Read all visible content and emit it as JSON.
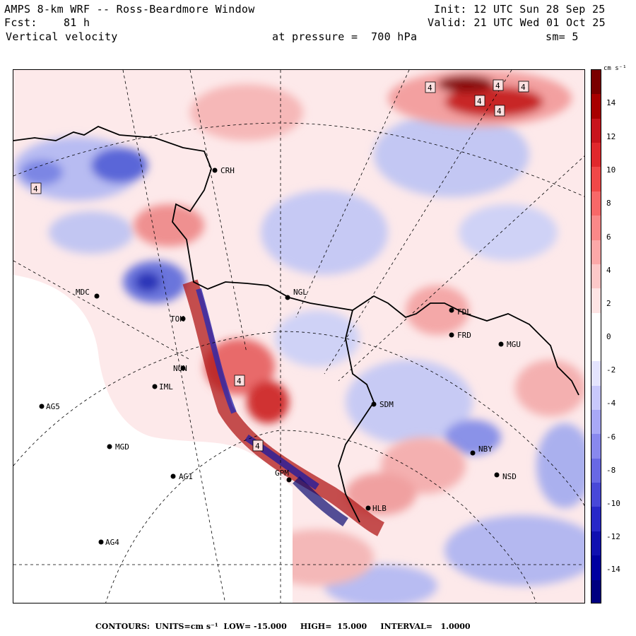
{
  "header": {
    "title": "AMPS 8-km WRF -- Ross-Beardmore Window",
    "forecast": "Fcst:    81 h",
    "variable": "Vertical velocity",
    "init": "Init: 12 UTC Sun 28 Sep 25",
    "valid": "Valid: 21 UTC Wed 01 Oct 25",
    "level": "at pressure =  700 hPa",
    "smoothing": "sm= 5"
  },
  "colorbar": {
    "unit": "cm s⁻¹",
    "tick_labels": [
      "14",
      "12",
      "10",
      "8",
      "6",
      "4",
      "2",
      "0",
      "-2",
      "-4",
      "-6",
      "-8",
      "-10",
      "-12",
      "-14"
    ],
    "colors": [
      "#7a0000",
      "#a80000",
      "#c8141c",
      "#e0282c",
      "#f04848",
      "#f86868",
      "#fa8888",
      "#fca8a8",
      "#fdc8c8",
      "#fee4e4",
      "#ffffff",
      "#ffffff",
      "#e4e4fe",
      "#c8c8fc",
      "#a8a8f6",
      "#8888ee",
      "#6868e4",
      "#4848d8",
      "#2828c8",
      "#1010b0",
      "#0000a0",
      "#000080"
    ]
  },
  "stations": [
    {
      "id": "MDC",
      "label": "MDC"
    },
    {
      "id": "NGL",
      "label": "NGL"
    },
    {
      "id": "FDL",
      "label": "FDL"
    },
    {
      "id": "FRD",
      "label": "FRD"
    },
    {
      "id": "MGU",
      "label": "MGU"
    },
    {
      "id": "SDM",
      "label": "SDM"
    },
    {
      "id": "IML",
      "label": "IML"
    },
    {
      "id": "AG5",
      "label": "AG5"
    },
    {
      "id": "MGD",
      "label": "MGD"
    },
    {
      "id": "AG1",
      "label": "AG1"
    },
    {
      "id": "AG4",
      "label": "AG4"
    },
    {
      "id": "NBY",
      "label": "NBY"
    },
    {
      "id": "NSD",
      "label": "NSD"
    },
    {
      "id": "HLB",
      "label": "HLB"
    },
    {
      "id": "GPM",
      "label": "GPM"
    },
    {
      "id": "CRH",
      "label": "CRH"
    },
    {
      "id": "TOK",
      "label": "TOK"
    },
    {
      "id": "NUN",
      "label": "NUN"
    }
  ],
  "extrema_markers": [
    "4",
    "4",
    "4",
    "4",
    "4",
    "4",
    "4",
    "4"
  ],
  "footer": {
    "contours": "CONTOURS:  UNITS=cm s⁻¹  LOW= -15.000     HIGH=  15.000     INTERVAL=   1.0000"
  }
}
